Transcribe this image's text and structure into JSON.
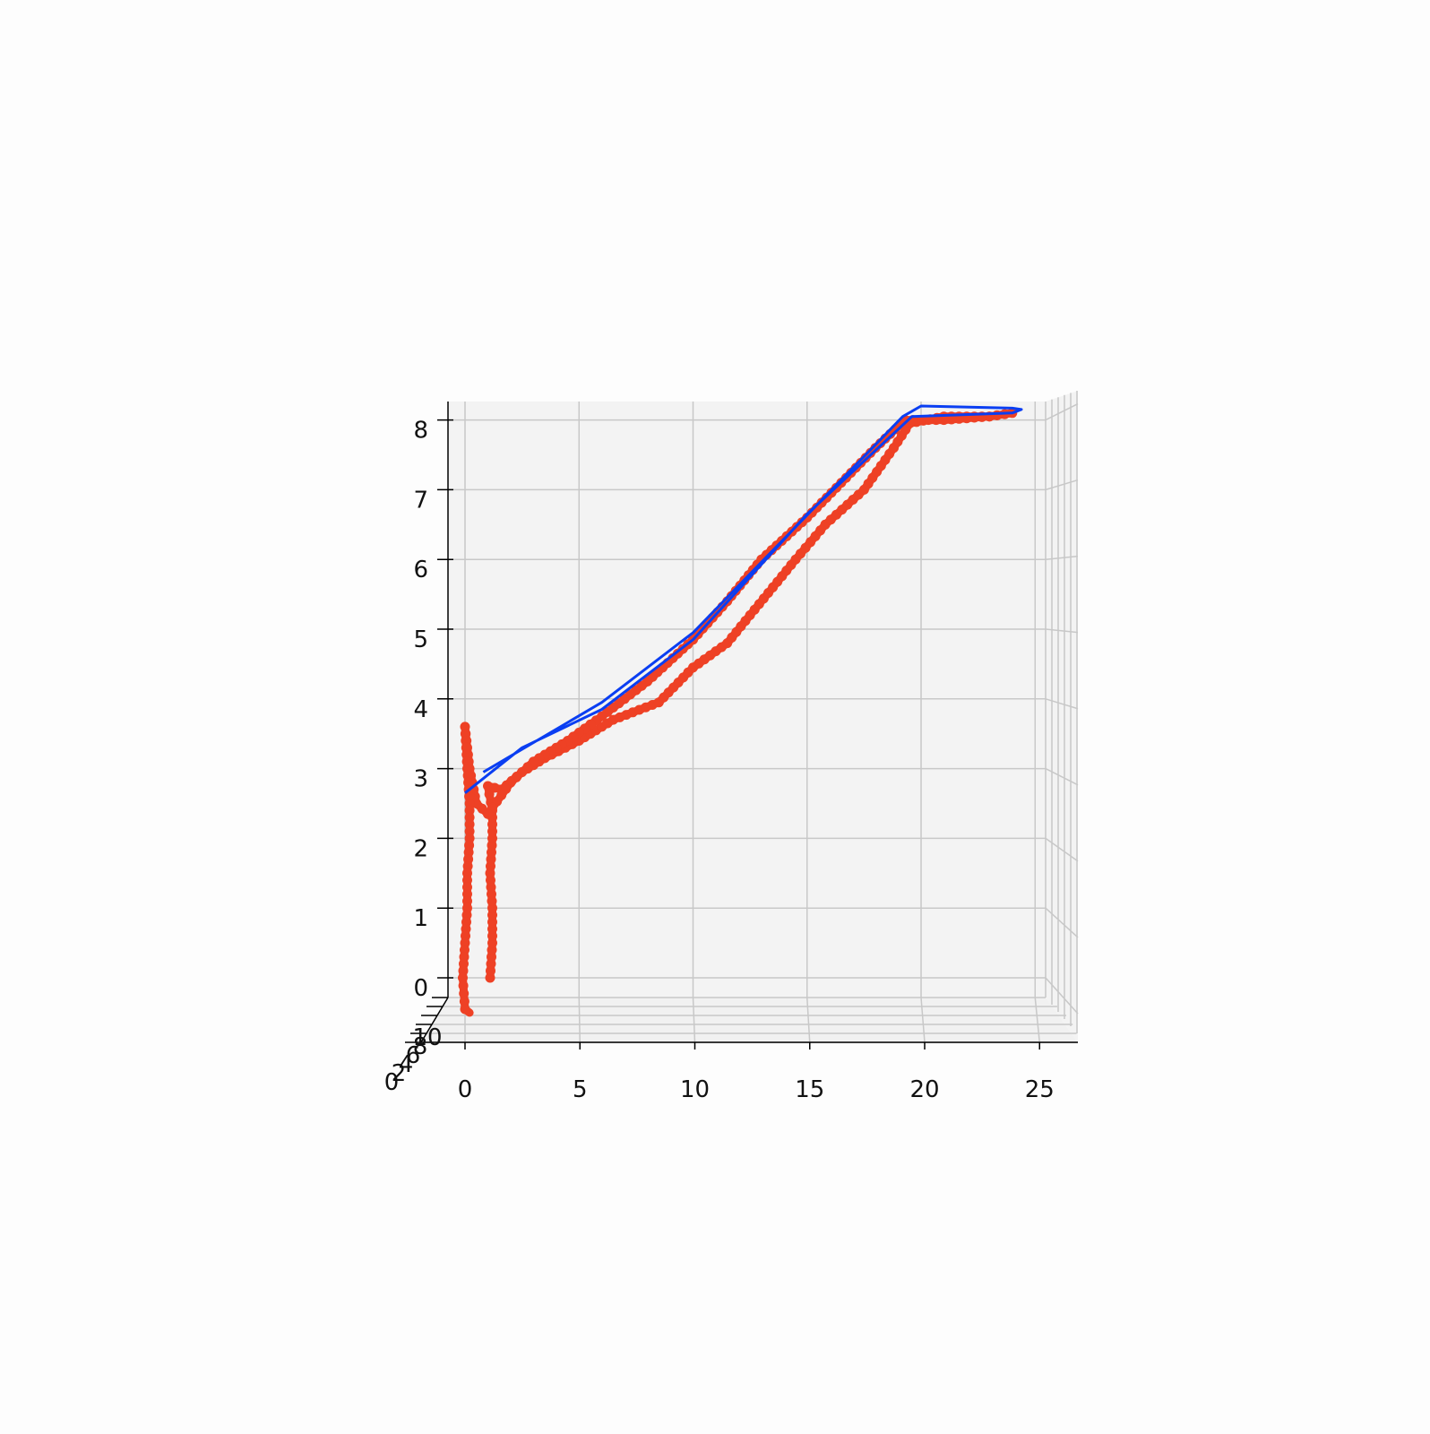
{
  "chart_data": {
    "type": "line",
    "projection": "3d",
    "title": "",
    "xlabel": "",
    "ylabel": "",
    "zlabel": "",
    "grid": true,
    "x_ticks": [
      "0",
      "5",
      "10",
      "15",
      "20",
      "25"
    ],
    "z_ticks": [
      "0",
      "1",
      "2",
      "3",
      "4",
      "5",
      "6",
      "7",
      "8"
    ],
    "y_ticks": [
      "0",
      "2",
      "4",
      "6",
      "8",
      "10"
    ],
    "xlim": [
      -0.8,
      26.8
    ],
    "zlim": [
      -0.3,
      8.2
    ],
    "colors": {
      "measured": "#ee4125",
      "reference": "#0a3ef2",
      "pane": "#f3f3f3"
    },
    "series": [
      {
        "style": "markers",
        "color": "#ee4125",
        "points_xz": [
          [
            1.1,
            0.0
          ],
          [
            1.2,
            0.5
          ],
          [
            1.2,
            1.0
          ],
          [
            1.1,
            1.5
          ],
          [
            1.2,
            2.0
          ],
          [
            1.2,
            2.4
          ],
          [
            1.0,
            2.75
          ],
          [
            1.6,
            2.7
          ],
          [
            2.5,
            2.95
          ],
          [
            3.5,
            3.15
          ],
          [
            5.0,
            3.4
          ],
          [
            6.5,
            3.7
          ],
          [
            8.5,
            3.95
          ],
          [
            10.0,
            4.45
          ],
          [
            11.5,
            4.8
          ],
          [
            12.5,
            5.2
          ],
          [
            13.5,
            5.6
          ],
          [
            14.5,
            6.0
          ],
          [
            15.8,
            6.5
          ],
          [
            17.5,
            7.0
          ],
          [
            18.8,
            7.6
          ],
          [
            19.5,
            7.95
          ],
          [
            21.0,
            8.05
          ],
          [
            23.0,
            8.05
          ],
          [
            24.0,
            8.1
          ],
          [
            23.0,
            8.05
          ],
          [
            21.0,
            8.0
          ],
          [
            19.3,
            8.0
          ],
          [
            18.0,
            7.6
          ],
          [
            16.5,
            7.1
          ],
          [
            15.0,
            6.6
          ],
          [
            13.0,
            6.0
          ],
          [
            11.5,
            5.4
          ],
          [
            10.0,
            4.85
          ],
          [
            8.0,
            4.25
          ],
          [
            6.0,
            3.75
          ],
          [
            4.5,
            3.4
          ],
          [
            3.0,
            3.1
          ],
          [
            2.0,
            2.8
          ],
          [
            1.0,
            2.35
          ],
          [
            0.5,
            2.5
          ],
          [
            0.2,
            3.0
          ],
          [
            0.0,
            3.6
          ],
          [
            0.1,
            3.0
          ],
          [
            0.2,
            2.5
          ],
          [
            0.2,
            2.0
          ],
          [
            0.1,
            1.5
          ],
          [
            0.1,
            1.0
          ],
          [
            0.0,
            0.5
          ],
          [
            -0.1,
            0.0
          ],
          [
            0.0,
            -0.45
          ],
          [
            0.2,
            -0.5
          ]
        ]
      },
      {
        "style": "line",
        "color": "#0a3ef2",
        "points_xz": [
          [
            0.8,
            2.95
          ],
          [
            6.0,
            3.95
          ],
          [
            10.0,
            4.95
          ],
          [
            19.2,
            8.05
          ],
          [
            20.0,
            8.2
          ],
          [
            24.0,
            8.17
          ],
          [
            24.4,
            8.15
          ],
          [
            24.0,
            8.1
          ],
          [
            19.6,
            8.05
          ],
          [
            15.0,
            6.65
          ],
          [
            10.0,
            4.85
          ],
          [
            6.0,
            3.85
          ],
          [
            2.5,
            3.3
          ],
          [
            0.0,
            2.65
          ]
        ]
      }
    ]
  }
}
